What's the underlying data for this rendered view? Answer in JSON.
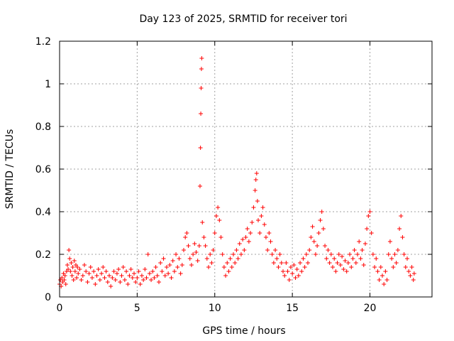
{
  "chart_data": {
    "type": "scatter",
    "title": "Day 123 of 2025, SRMTID for receiver tori",
    "xlabel": "GPS time / hours",
    "ylabel": "SRMTID / TECUs",
    "xlim": [
      0,
      24
    ],
    "ylim": [
      0,
      1.2
    ],
    "x_ticks": [
      0,
      5,
      10,
      15,
      20
    ],
    "y_ticks": [
      0,
      0.2,
      0.4,
      0.6,
      0.8,
      1,
      1.2
    ],
    "x_tick_labels": [
      "0",
      "5",
      "10",
      "15",
      "20"
    ],
    "y_tick_labels": [
      "0",
      "0.2",
      "0.4",
      "0.6",
      "0.8",
      "1",
      "1.2"
    ],
    "grid": true,
    "marker": "+",
    "color": "#ff0000",
    "series": [
      {
        "name": "SRMTID",
        "points": [
          [
            0.0,
            0.06
          ],
          [
            0.05,
            0.08
          ],
          [
            0.1,
            0.05
          ],
          [
            0.15,
            0.09
          ],
          [
            0.2,
            0.07
          ],
          [
            0.25,
            0.11
          ],
          [
            0.3,
            0.08
          ],
          [
            0.35,
            0.1
          ],
          [
            0.4,
            0.06
          ],
          [
            0.45,
            0.12
          ],
          [
            0.5,
            0.15
          ],
          [
            0.55,
            0.13
          ],
          [
            0.6,
            0.22
          ],
          [
            0.65,
            0.18
          ],
          [
            0.7,
            0.12
          ],
          [
            0.75,
            0.16
          ],
          [
            0.8,
            0.1
          ],
          [
            0.85,
            0.14
          ],
          [
            0.9,
            0.08
          ],
          [
            0.95,
            0.17
          ],
          [
            1.0,
            0.12
          ],
          [
            1.05,
            0.15
          ],
          [
            1.1,
            0.09
          ],
          [
            1.15,
            0.14
          ],
          [
            1.2,
            0.11
          ],
          [
            1.3,
            0.13
          ],
          [
            1.4,
            0.08
          ],
          [
            1.5,
            0.1
          ],
          [
            1.6,
            0.15
          ],
          [
            1.7,
            0.12
          ],
          [
            1.8,
            0.07
          ],
          [
            1.9,
            0.11
          ],
          [
            2.0,
            0.14
          ],
          [
            2.1,
            0.09
          ],
          [
            2.2,
            0.12
          ],
          [
            2.3,
            0.06
          ],
          [
            2.4,
            0.1
          ],
          [
            2.5,
            0.13
          ],
          [
            2.6,
            0.08
          ],
          [
            2.7,
            0.11
          ],
          [
            2.8,
            0.14
          ],
          [
            2.9,
            0.09
          ],
          [
            3.0,
            0.12
          ],
          [
            3.1,
            0.07
          ],
          [
            3.2,
            0.1
          ],
          [
            3.3,
            0.05
          ],
          [
            3.4,
            0.09
          ],
          [
            3.5,
            0.12
          ],
          [
            3.6,
            0.08
          ],
          [
            3.7,
            0.11
          ],
          [
            3.8,
            0.13
          ],
          [
            3.9,
            0.07
          ],
          [
            4.0,
            0.1
          ],
          [
            4.1,
            0.14
          ],
          [
            4.2,
            0.08
          ],
          [
            4.3,
            0.12
          ],
          [
            4.4,
            0.06
          ],
          [
            4.5,
            0.1
          ],
          [
            4.6,
            0.13
          ],
          [
            4.7,
            0.09
          ],
          [
            4.8,
            0.11
          ],
          [
            4.9,
            0.07
          ],
          [
            5.0,
            0.09
          ],
          [
            5.1,
            0.12
          ],
          [
            5.2,
            0.06
          ],
          [
            5.3,
            0.1
          ],
          [
            5.4,
            0.08
          ],
          [
            5.5,
            0.13
          ],
          [
            5.6,
            0.09
          ],
          [
            5.7,
            0.2
          ],
          [
            5.8,
            0.11
          ],
          [
            5.9,
            0.08
          ],
          [
            6.0,
            0.12
          ],
          [
            6.1,
            0.09
          ],
          [
            6.2,
            0.14
          ],
          [
            6.3,
            0.1
          ],
          [
            6.4,
            0.07
          ],
          [
            6.5,
            0.16
          ],
          [
            6.6,
            0.12
          ],
          [
            6.7,
            0.18
          ],
          [
            6.8,
            0.1
          ],
          [
            6.9,
            0.14
          ],
          [
            7.0,
            0.11
          ],
          [
            7.1,
            0.15
          ],
          [
            7.2,
            0.09
          ],
          [
            7.3,
            0.17
          ],
          [
            7.4,
            0.12
          ],
          [
            7.5,
            0.2
          ],
          [
            7.6,
            0.14
          ],
          [
            7.7,
            0.18
          ],
          [
            7.8,
            0.11
          ],
          [
            7.9,
            0.15
          ],
          [
            8.0,
            0.22
          ],
          [
            8.1,
            0.28
          ],
          [
            8.2,
            0.3
          ],
          [
            8.3,
            0.24
          ],
          [
            8.4,
            0.18
          ],
          [
            8.5,
            0.15
          ],
          [
            8.6,
            0.2
          ],
          [
            8.7,
            0.25
          ],
          [
            8.8,
            0.21
          ],
          [
            8.9,
            0.17
          ],
          [
            9.0,
            0.24
          ],
          [
            9.05,
            0.52
          ],
          [
            9.08,
            0.7
          ],
          [
            9.1,
            0.86
          ],
          [
            9.12,
            0.98
          ],
          [
            9.14,
            1.07
          ],
          [
            9.16,
            1.12
          ],
          [
            9.2,
            0.35
          ],
          [
            9.3,
            0.28
          ],
          [
            9.4,
            0.24
          ],
          [
            9.5,
            0.18
          ],
          [
            9.6,
            0.14
          ],
          [
            9.7,
            0.2
          ],
          [
            9.8,
            0.16
          ],
          [
            9.9,
            0.22
          ],
          [
            10.0,
            0.3
          ],
          [
            10.1,
            0.38
          ],
          [
            10.2,
            0.42
          ],
          [
            10.3,
            0.36
          ],
          [
            10.4,
            0.28
          ],
          [
            10.5,
            0.2
          ],
          [
            10.6,
            0.14
          ],
          [
            10.7,
            0.1
          ],
          [
            10.8,
            0.16
          ],
          [
            10.9,
            0.12
          ],
          [
            11.0,
            0.18
          ],
          [
            11.1,
            0.14
          ],
          [
            11.2,
            0.2
          ],
          [
            11.3,
            0.16
          ],
          [
            11.4,
            0.22
          ],
          [
            11.5,
            0.18
          ],
          [
            11.6,
            0.25
          ],
          [
            11.7,
            0.2
          ],
          [
            11.8,
            0.27
          ],
          [
            11.9,
            0.22
          ],
          [
            12.0,
            0.28
          ],
          [
            12.1,
            0.32
          ],
          [
            12.2,
            0.26
          ],
          [
            12.3,
            0.3
          ],
          [
            12.4,
            0.35
          ],
          [
            12.5,
            0.42
          ],
          [
            12.6,
            0.5
          ],
          [
            12.65,
            0.55
          ],
          [
            12.7,
            0.58
          ],
          [
            12.75,
            0.45
          ],
          [
            12.8,
            0.36
          ],
          [
            12.9,
            0.3
          ],
          [
            13.0,
            0.38
          ],
          [
            13.1,
            0.42
          ],
          [
            13.2,
            0.34
          ],
          [
            13.3,
            0.28
          ],
          [
            13.4,
            0.22
          ],
          [
            13.5,
            0.3
          ],
          [
            13.6,
            0.26
          ],
          [
            13.7,
            0.2
          ],
          [
            13.8,
            0.16
          ],
          [
            13.9,
            0.22
          ],
          [
            14.0,
            0.18
          ],
          [
            14.1,
            0.14
          ],
          [
            14.2,
            0.2
          ],
          [
            14.3,
            0.16
          ],
          [
            14.4,
            0.12
          ],
          [
            14.5,
            0.1
          ],
          [
            14.6,
            0.16
          ],
          [
            14.7,
            0.12
          ],
          [
            14.8,
            0.08
          ],
          [
            14.9,
            0.14
          ],
          [
            15.0,
            0.11
          ],
          [
            15.1,
            0.15
          ],
          [
            15.2,
            0.09
          ],
          [
            15.3,
            0.13
          ],
          [
            15.4,
            0.1
          ],
          [
            15.5,
            0.16
          ],
          [
            15.6,
            0.12
          ],
          [
            15.7,
            0.18
          ],
          [
            15.8,
            0.14
          ],
          [
            15.9,
            0.2
          ],
          [
            16.0,
            0.16
          ],
          [
            16.1,
            0.22
          ],
          [
            16.2,
            0.28
          ],
          [
            16.3,
            0.33
          ],
          [
            16.4,
            0.26
          ],
          [
            16.5,
            0.2
          ],
          [
            16.6,
            0.24
          ],
          [
            16.7,
            0.3
          ],
          [
            16.8,
            0.36
          ],
          [
            16.9,
            0.4
          ],
          [
            17.0,
            0.32
          ],
          [
            17.1,
            0.24
          ],
          [
            17.2,
            0.18
          ],
          [
            17.3,
            0.22
          ],
          [
            17.4,
            0.16
          ],
          [
            17.5,
            0.2
          ],
          [
            17.6,
            0.14
          ],
          [
            17.7,
            0.18
          ],
          [
            17.8,
            0.12
          ],
          [
            17.9,
            0.16
          ],
          [
            18.0,
            0.2
          ],
          [
            18.1,
            0.15
          ],
          [
            18.2,
            0.19
          ],
          [
            18.3,
            0.13
          ],
          [
            18.4,
            0.17
          ],
          [
            18.5,
            0.12
          ],
          [
            18.6,
            0.16
          ],
          [
            18.7,
            0.2
          ],
          [
            18.8,
            0.14
          ],
          [
            18.9,
            0.18
          ],
          [
            19.0,
            0.22
          ],
          [
            19.1,
            0.16
          ],
          [
            19.2,
            0.2
          ],
          [
            19.3,
            0.26
          ],
          [
            19.4,
            0.18
          ],
          [
            19.5,
            0.22
          ],
          [
            19.6,
            0.15
          ],
          [
            19.7,
            0.25
          ],
          [
            19.8,
            0.32
          ],
          [
            19.9,
            0.38
          ],
          [
            20.0,
            0.4
          ],
          [
            20.1,
            0.3
          ],
          [
            20.2,
            0.2
          ],
          [
            20.3,
            0.14
          ],
          [
            20.4,
            0.18
          ],
          [
            20.5,
            0.12
          ],
          [
            20.6,
            0.08
          ],
          [
            20.7,
            0.14
          ],
          [
            20.8,
            0.1
          ],
          [
            20.9,
            0.06
          ],
          [
            21.0,
            0.12
          ],
          [
            21.1,
            0.08
          ],
          [
            21.2,
            0.2
          ],
          [
            21.3,
            0.26
          ],
          [
            21.4,
            0.18
          ],
          [
            21.5,
            0.14
          ],
          [
            21.6,
            0.2
          ],
          [
            21.7,
            0.16
          ],
          [
            21.8,
            0.22
          ],
          [
            21.9,
            0.32
          ],
          [
            22.0,
            0.38
          ],
          [
            22.1,
            0.28
          ],
          [
            22.2,
            0.2
          ],
          [
            22.3,
            0.14
          ],
          [
            22.4,
            0.18
          ],
          [
            22.5,
            0.12
          ],
          [
            22.6,
            0.1
          ],
          [
            22.7,
            0.14
          ],
          [
            22.8,
            0.08
          ],
          [
            22.85,
            0.11
          ]
        ]
      }
    ]
  }
}
